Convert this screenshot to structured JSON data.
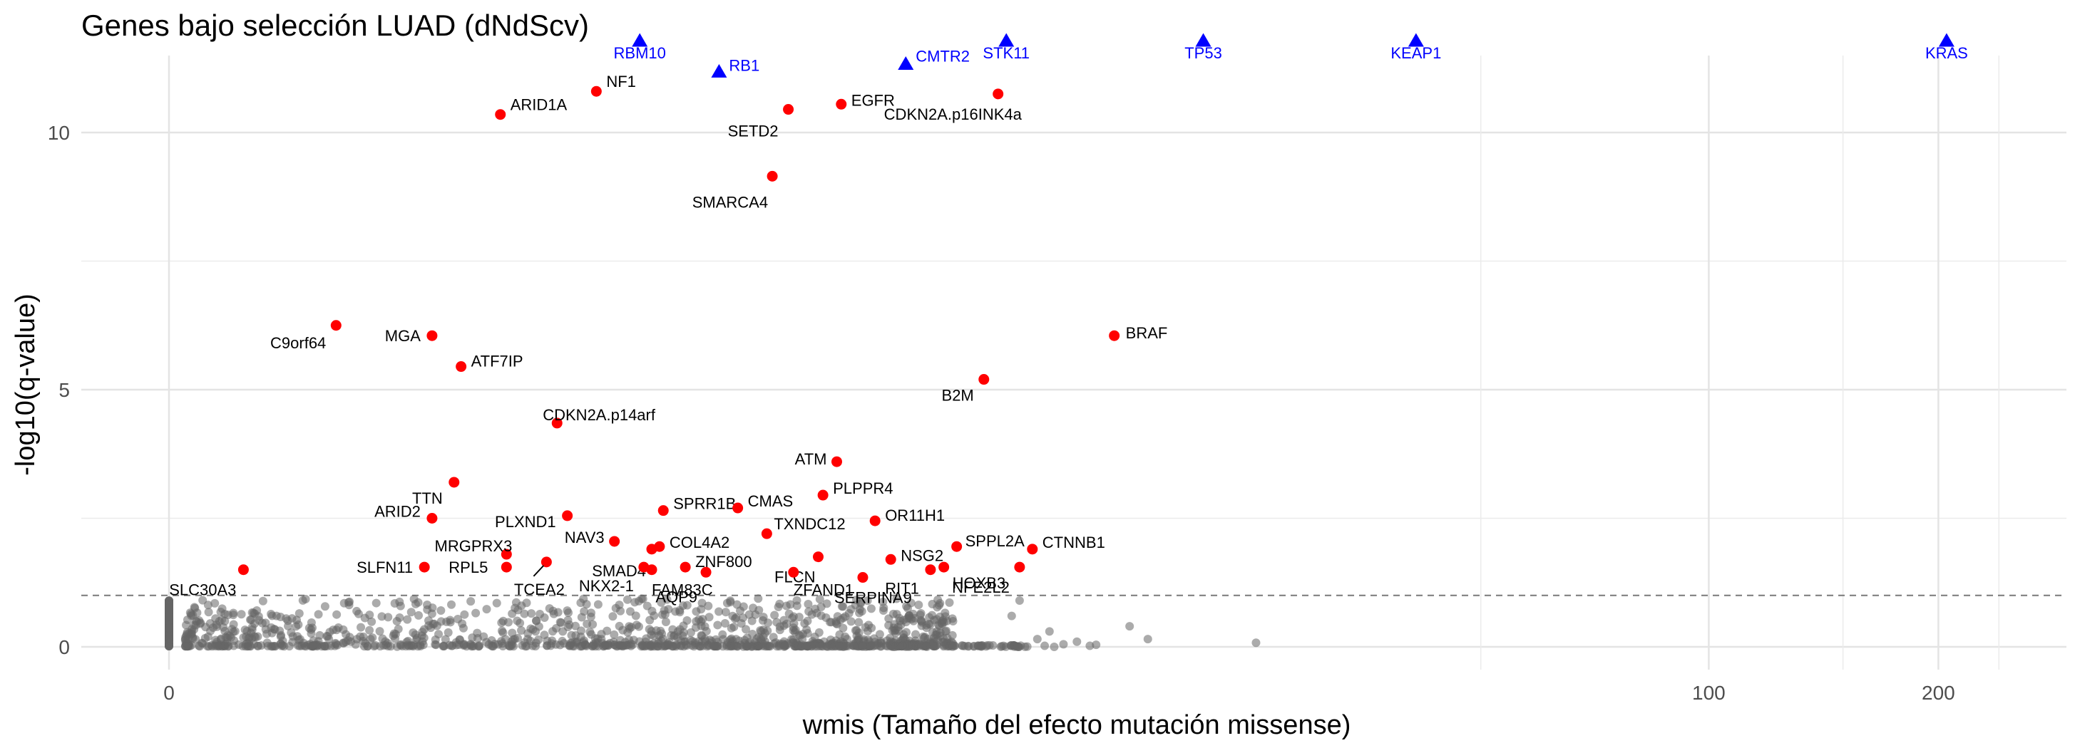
{
  "chart_data": {
    "type": "scatter",
    "title": "Genes bajo selección LUAD (dNdScv)",
    "xlabel": "wmis (Tamaño del efecto mutación missense)",
    "ylabel": "-log10(q-value)",
    "x_scale": "pseudo-log",
    "xlim": [
      -5,
      250
    ],
    "ylim": [
      -0.6,
      11.8
    ],
    "x_ticks": [
      {
        "value": 0,
        "label": "0"
      },
      {
        "value": 100,
        "label": "100"
      },
      {
        "value": 200,
        "label": "200"
      }
    ],
    "y_ticks": [
      {
        "value": 0,
        "label": "0"
      },
      {
        "value": 5,
        "label": "5"
      },
      {
        "value": 10,
        "label": "10"
      }
    ],
    "threshold_line": {
      "y": 1.0,
      "style": "dashed"
    },
    "colors": {
      "significant": "#ff0000",
      "capped": "#0000ff",
      "background": "#666666",
      "threshold": "#808080"
    },
    "capped_genes": [
      {
        "gene": "RBM10",
        "x": 3.1,
        "y": 11.8
      },
      {
        "gene": "RB1",
        "x": 4.2,
        "y": 11.2
      },
      {
        "gene": "CMTR2",
        "x": 8.1,
        "y": 11.35
      },
      {
        "gene": "STK11",
        "x": 11.3,
        "y": 11.8
      },
      {
        "gene": "TP53",
        "x": 21.2,
        "y": 11.8
      },
      {
        "gene": "KEAP1",
        "x": 41.0,
        "y": 11.8
      },
      {
        "gene": "KRAS",
        "x": 205.0,
        "y": 11.8
      }
    ],
    "significant_genes": [
      {
        "gene": "NF1",
        "x": 2.6,
        "y": 10.8
      },
      {
        "gene": "ARID1A",
        "x": 1.7,
        "y": 10.35
      },
      {
        "gene": "SETD2",
        "x": 5.4,
        "y": 10.45
      },
      {
        "gene": "EGFR",
        "x": 6.5,
        "y": 10.55
      },
      {
        "gene": "CDKN2A.p16INK4a",
        "x": 11.0,
        "y": 10.75
      },
      {
        "gene": "SMARCA4",
        "x": 5.1,
        "y": 9.15
      },
      {
        "gene": "C9orf64",
        "x": 0.65,
        "y": 6.25
      },
      {
        "gene": "MGA",
        "x": 1.2,
        "y": 6.05
      },
      {
        "gene": "BRAF",
        "x": 16.0,
        "y": 6.05
      },
      {
        "gene": "ATF7IP",
        "x": 1.4,
        "y": 5.45
      },
      {
        "gene": "B2M",
        "x": 10.5,
        "y": 5.2
      },
      {
        "gene": "CDKN2A.p14arf",
        "x": 2.2,
        "y": 4.35
      },
      {
        "gene": "ATM",
        "x": 6.4,
        "y": 3.6
      },
      {
        "gene": "TTN",
        "x": 1.35,
        "y": 3.2
      },
      {
        "gene": "PLPPR4",
        "x": 6.1,
        "y": 2.95
      },
      {
        "gene": "SPRR1B",
        "x": 3.4,
        "y": 2.65
      },
      {
        "gene": "CMAS",
        "x": 4.5,
        "y": 2.7
      },
      {
        "gene": "PLXND1",
        "x": 2.3,
        "y": 2.55
      },
      {
        "gene": "ARID2",
        "x": 1.2,
        "y": 2.5
      },
      {
        "gene": "OR11H1",
        "x": 7.3,
        "y": 2.45
      },
      {
        "gene": "TXNDC12",
        "x": 5.0,
        "y": 2.2
      },
      {
        "gene": "NAV3",
        "x": 2.8,
        "y": 2.05
      },
      {
        "gene": "SMAD4",
        "x": 3.25,
        "y": 1.9
      },
      {
        "gene": "COL4A2",
        "x": 3.35,
        "y": 1.95
      },
      {
        "gene": "SPPL2A",
        "x": 9.6,
        "y": 1.95
      },
      {
        "gene": "CTNNB1",
        "x": 12.3,
        "y": 1.9
      },
      {
        "gene": "MRGPRX3",
        "x": 1.75,
        "y": 1.8
      },
      {
        "gene": "FLCN",
        "x": 6.0,
        "y": 1.75
      },
      {
        "gene": "NSG2",
        "x": 7.7,
        "y": 1.7
      },
      {
        "gene": "TCEA2",
        "x": 2.1,
        "y": 1.65
      },
      {
        "gene": "SLFN11",
        "x": 1.15,
        "y": 1.55
      },
      {
        "gene": "RPL5",
        "x": 1.75,
        "y": 1.55
      },
      {
        "gene": "NKX2-1",
        "x": 3.15,
        "y": 1.55
      },
      {
        "gene": "FAM83C",
        "x": 3.25,
        "y": 1.5
      },
      {
        "gene": "ZNF800",
        "x": 3.7,
        "y": 1.55
      },
      {
        "gene": "AQP9",
        "x": 4.0,
        "y": 1.45
      },
      {
        "gene": "ZFAND1",
        "x": 5.5,
        "y": 1.45
      },
      {
        "gene": "HOXB3",
        "x": 9.2,
        "y": 1.55
      },
      {
        "gene": "RIT1",
        "x": 8.8,
        "y": 1.5
      },
      {
        "gene": "NFE2L2",
        "x": 11.8,
        "y": 1.55
      },
      {
        "gene": "SLC30A3",
        "x": 0.25,
        "y": 1.5
      },
      {
        "gene": "SERPINA9",
        "x": 7.0,
        "y": 1.35
      }
    ],
    "background_summary": "many non-significant genes with -log10(q) between 0 and 1.0 and wmis between 0 and ~25"
  }
}
